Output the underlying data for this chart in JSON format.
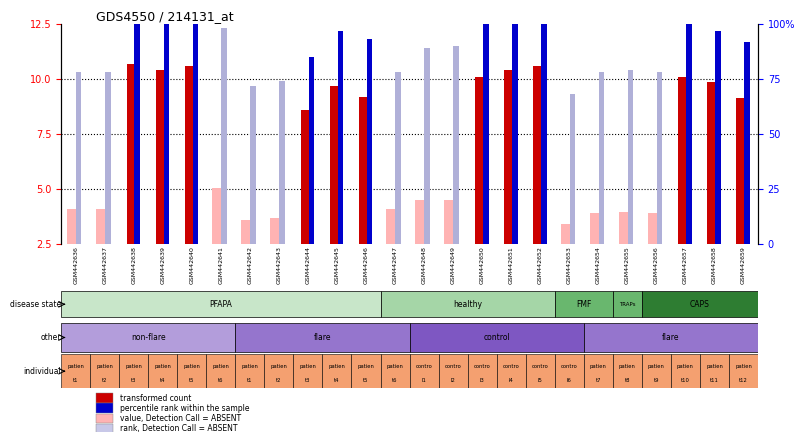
{
  "title": "GDS4550 / 214131_at",
  "samples": [
    "GSM442636",
    "GSM442637",
    "GSM442638",
    "GSM442639",
    "GSM442640",
    "GSM442641",
    "GSM442642",
    "GSM442643",
    "GSM442644",
    "GSM442645",
    "GSM442646",
    "GSM442647",
    "GSM442648",
    "GSM442649",
    "GSM442650",
    "GSM442651",
    "GSM442652",
    "GSM442653",
    "GSM442654",
    "GSM442655",
    "GSM442656",
    "GSM442657",
    "GSM442658",
    "GSM442659"
  ],
  "red_values": [
    4.1,
    4.1,
    10.7,
    10.4,
    10.6,
    5.05,
    3.6,
    3.7,
    8.6,
    9.7,
    9.2,
    4.1,
    4.5,
    4.5,
    10.1,
    10.4,
    10.6,
    3.4,
    3.9,
    3.95,
    3.9,
    10.1,
    9.85,
    9.15
  ],
  "blue_values": [
    0.78,
    0.78,
    1.06,
    1.04,
    1.06,
    0.98,
    0.72,
    0.74,
    0.85,
    0.97,
    0.93,
    0.78,
    0.89,
    0.9,
    1.02,
    1.04,
    1.08,
    0.68,
    0.78,
    0.79,
    0.78,
    1.02,
    0.97,
    0.92
  ],
  "pink_values": [
    4.1,
    4.1,
    null,
    null,
    null,
    5.05,
    3.6,
    3.7,
    null,
    null,
    null,
    4.1,
    4.5,
    4.5,
    null,
    null,
    null,
    3.4,
    3.9,
    3.95,
    3.9,
    null,
    null,
    null
  ],
  "lavender_values": [
    0.78,
    0.78,
    null,
    null,
    null,
    0.98,
    0.72,
    0.74,
    null,
    null,
    null,
    0.78,
    0.89,
    0.9,
    null,
    null,
    null,
    0.68,
    0.78,
    0.79,
    0.78,
    null,
    null,
    null
  ],
  "disease_state_groups": [
    {
      "label": "PFAPA",
      "start": 0,
      "end": 11,
      "color": "#c8e6c9"
    },
    {
      "label": "healthy",
      "start": 11,
      "end": 17,
      "color": "#a5d6a7"
    },
    {
      "label": "FMF",
      "start": 17,
      "end": 19,
      "color": "#69b76e"
    },
    {
      "label": "TRAPs",
      "start": 19,
      "end": 20,
      "color": "#69b76e"
    },
    {
      "label": "CAPS",
      "start": 20,
      "end": 24,
      "color": "#2e7d32"
    }
  ],
  "other_groups": [
    {
      "label": "non-flare",
      "start": 0,
      "end": 6,
      "color": "#b39ddb"
    },
    {
      "label": "flare",
      "start": 6,
      "end": 12,
      "color": "#9575cd"
    },
    {
      "label": "control",
      "start": 12,
      "end": 18,
      "color": "#7e57c2"
    },
    {
      "label": "flare",
      "start": 18,
      "end": 24,
      "color": "#9575cd"
    }
  ],
  "individual_labels": [
    "patient1",
    "patient2",
    "patient3",
    "patient4",
    "patient5",
    "patient6",
    "patient1",
    "patient2",
    "patient3",
    "patient4",
    "patient5",
    "patient6",
    "control1",
    "control2",
    "control3",
    "control4",
    "control5",
    "control6",
    "patient7",
    "patient8",
    "patient9",
    "patient10",
    "patient11",
    "patient12"
  ],
  "individual_sublabels": [
    "t1",
    "t2",
    "t3",
    "t4",
    "t5",
    "t6",
    "t1",
    "t2",
    "t3",
    "t4",
    "t5",
    "t6",
    "l1",
    "l2",
    "l3",
    "l4",
    "l5",
    "l6",
    "t7",
    "t8",
    "t9",
    "t10",
    "t11",
    "t12"
  ],
  "row_labels": [
    "disease state",
    "other",
    "individual"
  ],
  "legend_items": [
    {
      "color": "#cc0000",
      "label": "transformed count"
    },
    {
      "color": "#0000cc",
      "label": "percentile rank within the sample"
    },
    {
      "color": "#ffb3b3",
      "label": "value, Detection Call = ABSENT"
    },
    {
      "color": "#c8c8e8",
      "label": "rank, Detection Call = ABSENT"
    }
  ],
  "ylim_left": [
    2.5,
    12.5
  ],
  "yticks_left": [
    2.5,
    5.0,
    7.5,
    10.0,
    12.5
  ],
  "ylim_right": [
    0,
    100
  ],
  "yticks_right": [
    0,
    25,
    50,
    75,
    100
  ],
  "bar_width": 0.35
}
